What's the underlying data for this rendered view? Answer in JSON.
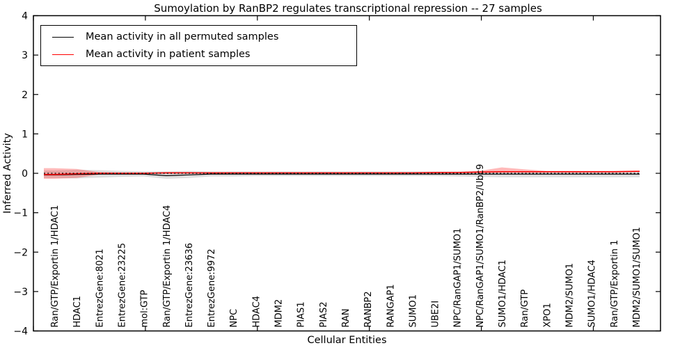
{
  "chart_data": {
    "type": "line",
    "title": "Sumoylation by RanBP2 regulates transcriptional repression -- 27 samples",
    "xlabel": "Cellular Entities",
    "ylabel": "Inferred Activity",
    "ylim": [
      -4,
      4
    ],
    "yticks": [
      -4,
      -3,
      -2,
      -1,
      0,
      1,
      2,
      3,
      4
    ],
    "xticks_numeric": [
      0,
      5,
      10,
      15,
      20,
      25
    ],
    "grid": false,
    "legend_position": "upper left",
    "categories": [
      "Ran/GTP/Exportin 1/HDAC1",
      "HDAC1",
      "EntrezGene:8021",
      "EntrezGene:23225",
      "mol:GTP",
      "Ran/GTP/Exportin 1/HDAC4",
      "EntrezGene:23636",
      "EntrezGene:9972",
      "NPC",
      "HDAC4",
      "MDM2",
      "PIAS1",
      "PIAS2",
      "RAN",
      "RANBP2",
      "RANGAP1",
      "SUMO1",
      "UBE2I",
      "NPC/RanGAP1/SUMO1",
      "NPC/RanGAP1/SUMO1/RanBP2/Ubc9",
      "SUMO1/HDAC1",
      "Ran/GTP",
      "XPO1",
      "MDM2/SUMO1",
      "SUMO1/HDAC4",
      "Ran/GTP/Exportin 1",
      "MDM2/SUMO1/SUMO1"
    ],
    "series": [
      {
        "id": "permuted-mean-line",
        "name": "Mean activity in all permuted samples",
        "color": "#000000",
        "style": "solid",
        "values": [
          -0.04,
          -0.03,
          -0.02,
          -0.02,
          -0.02,
          -0.06,
          -0.04,
          -0.02,
          -0.02,
          -0.02,
          -0.02,
          -0.02,
          -0.02,
          -0.02,
          -0.02,
          -0.02,
          -0.02,
          -0.02,
          -0.02,
          -0.02,
          -0.02,
          -0.02,
          -0.02,
          -0.02,
          -0.02,
          -0.02,
          -0.02
        ]
      },
      {
        "id": "patient-mean-line",
        "name": "Mean activity in patient samples",
        "color": "#ff0000",
        "style": "solid",
        "values": [
          -0.03,
          -0.01,
          0,
          0,
          0,
          0.01,
          0.01,
          0.01,
          0.01,
          0.01,
          0.01,
          0.01,
          0.01,
          0.01,
          0.01,
          0.01,
          0.01,
          0.02,
          0.02,
          0.03,
          0.04,
          0.04,
          0.04,
          0.04,
          0.04,
          0.04,
          0.05
        ]
      }
    ],
    "bands": [
      {
        "id": "permuted-band",
        "color": "#000000",
        "opacity": 0.13,
        "upper": [
          0.07,
          0.09,
          0.08,
          0.06,
          0.05,
          0.05,
          0.06,
          0.05,
          0.05,
          0.05,
          0.05,
          0.05,
          0.05,
          0.05,
          0.05,
          0.05,
          0.05,
          0.05,
          0.05,
          0.06,
          0.06,
          0.06,
          0.06,
          0.06,
          0.06,
          0.06,
          0.06
        ],
        "lower": [
          -0.12,
          -0.13,
          -0.11,
          -0.09,
          -0.08,
          -0.14,
          -0.12,
          -0.08,
          -0.08,
          -0.07,
          -0.07,
          -0.07,
          -0.07,
          -0.07,
          -0.07,
          -0.07,
          -0.07,
          -0.07,
          -0.08,
          -0.09,
          -0.1,
          -0.1,
          -0.1,
          -0.1,
          -0.1,
          -0.1,
          -0.1
        ]
      },
      {
        "id": "patient-band",
        "color": "#ff0000",
        "opacity": 0.27,
        "upper": [
          0.13,
          0.11,
          0.03,
          0.02,
          0.02,
          0.03,
          0.03,
          0.02,
          0.02,
          0.02,
          0.02,
          0.02,
          0.02,
          0.02,
          0.02,
          0.02,
          0.02,
          0.03,
          0.03,
          0.06,
          0.15,
          0.1,
          0.06,
          0.06,
          0.06,
          0.06,
          0.07
        ],
        "lower": [
          -0.14,
          -0.12,
          -0.03,
          -0.01,
          -0.01,
          -0.01,
          -0.01,
          -0.01,
          0,
          0,
          0,
          0,
          0,
          0,
          0,
          0,
          0,
          0,
          0.01,
          0.01,
          0.02,
          0.02,
          0.02,
          0.02,
          0.02,
          0.02,
          0.03
        ]
      }
    ],
    "zero_line": {
      "y": 0,
      "color": "#000000",
      "style": "dotted"
    }
  }
}
